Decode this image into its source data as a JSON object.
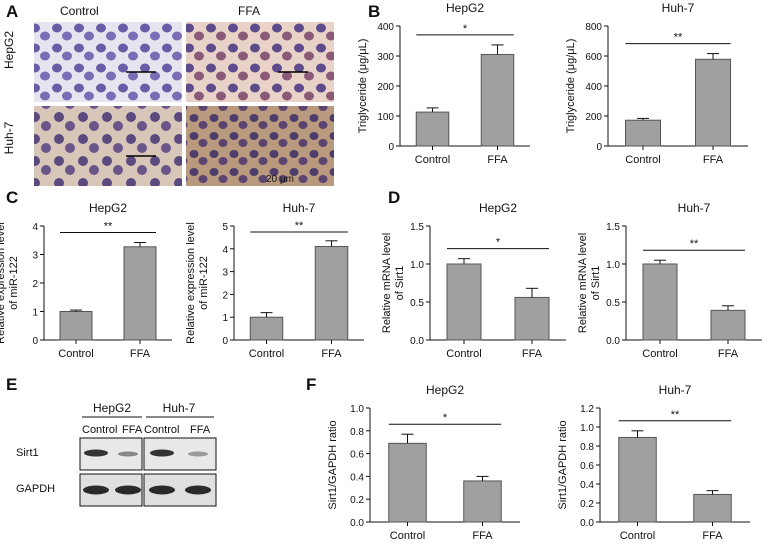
{
  "panels": {
    "a": "A",
    "b": "B",
    "c": "C",
    "d": "D",
    "e": "E",
    "f": "F"
  },
  "micrographs": {
    "col_labels": [
      "Control",
      "FFA"
    ],
    "row_labels": [
      "HepG2",
      "Huh-7"
    ],
    "scale_label": "20 μm"
  },
  "blot": {
    "groups": [
      "HepG2",
      "Huh-7"
    ],
    "lane_labels": [
      "Control",
      "FFA",
      "Control",
      "FFA"
    ],
    "proteins": [
      "Sirt1",
      "GAPDH"
    ]
  },
  "colors": {
    "bar": "#a0a0a0",
    "axis": "#111111",
    "cell_stain": "#5a4a9a",
    "background": "#ffffff"
  },
  "chart_data": [
    {
      "id": "B-HepG2",
      "type": "bar",
      "title": "HepG2",
      "ylabel": "Triglyceride (μg/μL)",
      "categories": [
        "Control",
        "FFA"
      ],
      "values": [
        113,
        305
      ],
      "errors": [
        14,
        32
      ],
      "ylim": [
        0,
        400
      ],
      "yticks": [
        0,
        100,
        200,
        300,
        400
      ],
      "significance": "*"
    },
    {
      "id": "B-Huh7",
      "type": "bar",
      "title": "Huh-7",
      "ylabel": "Triglyceride (μg/μL)",
      "categories": [
        "Control",
        "FFA"
      ],
      "values": [
        172,
        578
      ],
      "errors": [
        12,
        38
      ],
      "ylim": [
        0,
        800
      ],
      "yticks": [
        0,
        200,
        400,
        600,
        800
      ],
      "significance": "**"
    },
    {
      "id": "C-HepG2",
      "type": "bar",
      "title": "HepG2",
      "ylabel": "Relative expression level of miR-122",
      "categories": [
        "Control",
        "FFA"
      ],
      "values": [
        1.0,
        3.27
      ],
      "errors": [
        0.05,
        0.15
      ],
      "ylim": [
        0,
        4
      ],
      "yticks": [
        0,
        1,
        2,
        3,
        4
      ],
      "significance": "**"
    },
    {
      "id": "C-Huh7",
      "type": "bar",
      "title": "Huh-7",
      "ylabel": "Relative expression level of miR-122",
      "categories": [
        "Control",
        "FFA"
      ],
      "values": [
        1.0,
        4.1
      ],
      "errors": [
        0.2,
        0.25
      ],
      "ylim": [
        0,
        5
      ],
      "yticks": [
        0,
        1,
        2,
        3,
        4,
        5
      ],
      "significance": "**"
    },
    {
      "id": "D-HepG2",
      "type": "bar",
      "title": "HepG2",
      "ylabel": "Relative mRNA level of Sirt1",
      "categories": [
        "Control",
        "FFA"
      ],
      "values": [
        1.0,
        0.56
      ],
      "errors": [
        0.07,
        0.12
      ],
      "ylim": [
        0,
        1.5
      ],
      "yticks": [
        0.0,
        0.5,
        1.0,
        1.5
      ],
      "significance": "*"
    },
    {
      "id": "D-Huh7",
      "type": "bar",
      "title": "Huh-7",
      "ylabel": "Relative mRNA level of Sirt1",
      "categories": [
        "Control",
        "FFA"
      ],
      "values": [
        1.0,
        0.39
      ],
      "errors": [
        0.05,
        0.06
      ],
      "ylim": [
        0,
        1.5
      ],
      "yticks": [
        0.0,
        0.5,
        1.0,
        1.5
      ],
      "significance": "**"
    },
    {
      "id": "F-HepG2",
      "type": "bar",
      "title": "HepG2",
      "ylabel": "Sirt1/GAPDH ratio",
      "categories": [
        "Control",
        "FFA"
      ],
      "values": [
        0.69,
        0.36
      ],
      "errors": [
        0.08,
        0.04
      ],
      "ylim": [
        0,
        1.0
      ],
      "yticks": [
        0.0,
        0.2,
        0.4,
        0.6,
        0.8,
        1.0
      ],
      "significance": "*"
    },
    {
      "id": "F-Huh7",
      "type": "bar",
      "title": "Huh-7",
      "ylabel": "Sirt1/GAPDH ratio",
      "categories": [
        "Control",
        "FFA"
      ],
      "values": [
        0.89,
        0.29
      ],
      "errors": [
        0.07,
        0.04
      ],
      "ylim": [
        0,
        1.2
      ],
      "yticks": [
        0.0,
        0.2,
        0.4,
        0.6,
        0.8,
        1.0,
        1.2
      ],
      "significance": "**"
    }
  ]
}
